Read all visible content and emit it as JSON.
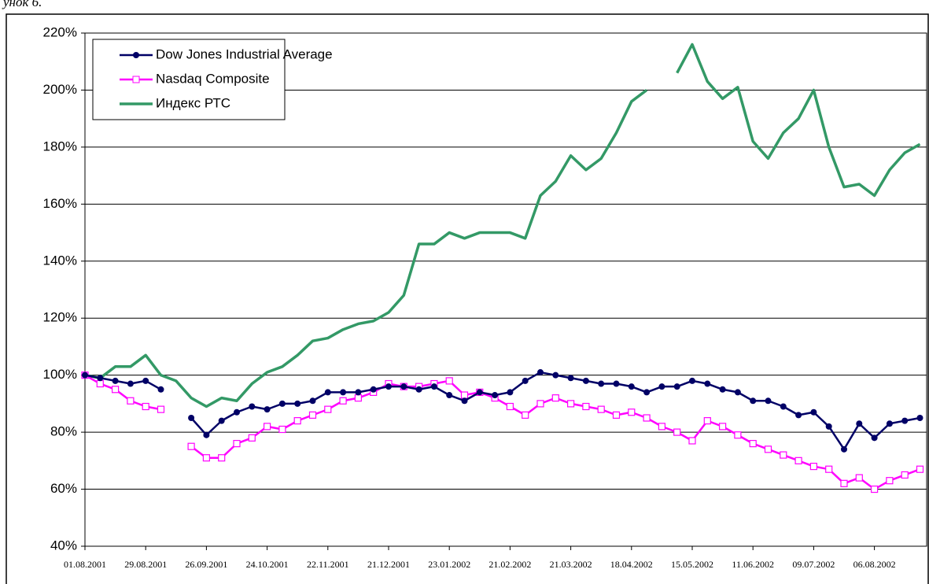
{
  "chart_data": {
    "type": "line",
    "caption": "унок 6.",
    "categories": [
      "01.08.2001",
      null,
      null,
      null,
      "29.08.2001",
      null,
      null,
      null,
      "26.09.2001",
      null,
      null,
      null,
      "24.10.2001",
      null,
      null,
      null,
      "22.11.2001",
      null,
      null,
      null,
      "21.12.2001",
      null,
      null,
      null,
      "23.01.2002",
      null,
      null,
      null,
      "21.02.2002",
      null,
      null,
      null,
      "21.03.2002",
      null,
      null,
      null,
      "18.04.2002",
      null,
      null,
      null,
      "15.05.2002",
      null,
      null,
      null,
      "11.06.2002",
      null,
      null,
      null,
      "09.07.2002",
      null,
      null,
      null,
      "06.08.2002",
      null,
      null,
      null
    ],
    "series": [
      {
        "name": "Dow Jones Industrial Average",
        "color": "#000066",
        "marker": "circle",
        "values": [
          100,
          99,
          98,
          97,
          98,
          95,
          null,
          85,
          79,
          84,
          87,
          89,
          88,
          90,
          90,
          91,
          94,
          94,
          94,
          95,
          96,
          96,
          95,
          96,
          93,
          91,
          94,
          93,
          94,
          98,
          101,
          100,
          99,
          98,
          97,
          97,
          96,
          94,
          96,
          96,
          98,
          97,
          95,
          94,
          91,
          91,
          89,
          86,
          87,
          82,
          74,
          83,
          78,
          83,
          84,
          85
        ]
      },
      {
        "name": "Nasdaq Composite",
        "color": "#ff00ff",
        "marker": "square",
        "values": [
          100,
          97,
          95,
          91,
          89,
          88,
          null,
          75,
          71,
          71,
          76,
          78,
          82,
          81,
          84,
          86,
          88,
          91,
          92,
          94,
          97,
          96,
          96,
          97,
          98,
          93,
          94,
          92,
          89,
          86,
          90,
          92,
          90,
          89,
          88,
          86,
          87,
          85,
          82,
          80,
          77,
          84,
          82,
          79,
          76,
          74,
          72,
          70,
          68,
          67,
          62,
          64,
          60,
          63,
          65,
          67
        ]
      },
      {
        "name": "Индекс РТС",
        "color": "#339966",
        "marker": "none",
        "values": [
          100,
          99,
          103,
          103,
          107,
          100,
          98,
          92,
          89,
          92,
          91,
          97,
          101,
          103,
          107,
          112,
          113,
          116,
          118,
          119,
          122,
          128,
          146,
          146,
          150,
          148,
          150,
          150,
          150,
          148,
          163,
          168,
          177,
          172,
          176,
          185,
          196,
          200,
          null,
          206,
          216,
          203,
          197,
          201,
          182,
          176,
          185,
          190,
          200,
          180,
          166,
          167,
          163,
          172,
          178,
          181
        ]
      }
    ],
    "ylim": [
      40,
      220
    ],
    "yticks": [
      {
        "value": 40,
        "label": "40%"
      },
      {
        "value": 60,
        "label": "60%"
      },
      {
        "value": 80,
        "label": "80%"
      },
      {
        "value": 100,
        "label": "100%"
      },
      {
        "value": 120,
        "label": "120%"
      },
      {
        "value": 140,
        "label": "140%"
      },
      {
        "value": 160,
        "label": "160%"
      },
      {
        "value": 180,
        "label": "180%"
      },
      {
        "value": 200,
        "label": "200%"
      },
      {
        "value": 220,
        "label": "220%"
      }
    ],
    "grid": true,
    "legend": "upper left"
  }
}
